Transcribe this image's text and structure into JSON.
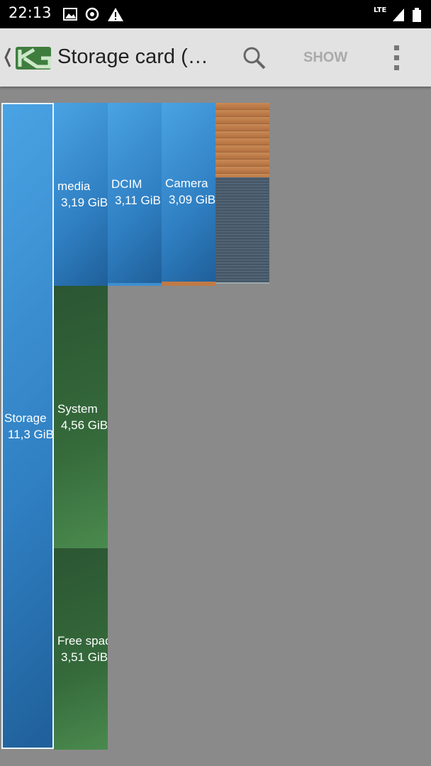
{
  "status_bar": {
    "time": "22:13",
    "network": "LTE"
  },
  "toolbar": {
    "title": "Storage card (…",
    "action": "SHOW"
  },
  "blocks": [
    {
      "name": "Storage",
      "size": "11,3 GiB"
    },
    {
      "name": "media",
      "size": "3,19 GiB"
    },
    {
      "name": "DCIM",
      "size": "3,11 GiB"
    },
    {
      "name": "Camera",
      "size": "3,09 GiB"
    },
    {
      "name": "System",
      "size": "4,56 GiB"
    },
    {
      "name": "Free space",
      "size": "3,51 GiB"
    }
  ]
}
